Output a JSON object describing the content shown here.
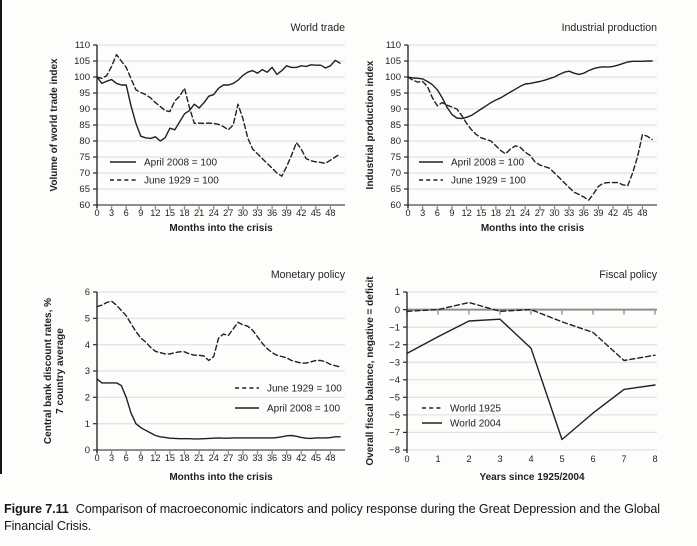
{
  "figure": {
    "caption_label": "Figure 7.11",
    "caption_text": "Comparison of macroeconomic indicators and policy response during the Great Depression and the Global Financial Crisis."
  },
  "colors": {
    "series_line": "#231f20",
    "grid": "#dcdcdc",
    "x_axis": "#8e8e8e",
    "y_axis": "#2b2b2b",
    "text": "#231f20"
  },
  "chart_data": [
    {
      "id": "world-trade",
      "type": "line",
      "title": "World trade",
      "ylabel": [
        "Volume of world trade index"
      ],
      "xlabel": "Months into the crisis",
      "ylim": [
        60,
        110
      ],
      "ytick_step": 5,
      "xlim": [
        0,
        51
      ],
      "xticks": [
        0,
        3,
        6,
        9,
        12,
        15,
        18,
        21,
        24,
        27,
        30,
        33,
        36,
        39,
        42,
        45,
        48
      ],
      "x_start": 0,
      "x_step": 1,
      "grid": true,
      "bottom_axis": true,
      "zero_line": false,
      "legend_order": [
        0,
        1
      ],
      "series": [
        {
          "name": "April 2008 = 100",
          "dash": "solid",
          "values": [
            100,
            98,
            98.7,
            99.2,
            98,
            97.5,
            97.5,
            91,
            85.5,
            81.5,
            81,
            80.8,
            81.3,
            80,
            81,
            84,
            83.5,
            86,
            88.5,
            89.5,
            91.5,
            90.3,
            92,
            94,
            94.5,
            96.5,
            97.5,
            97.5,
            98,
            99,
            100.5,
            101.5,
            102,
            101.2,
            102.3,
            101.5,
            103,
            100.8,
            102,
            103.5,
            103,
            103,
            103.5,
            103.3,
            103.8,
            103.7,
            103.7,
            102.8,
            103.5,
            105.2,
            104.3
          ]
        },
        {
          "name": "June 1929 = 100",
          "dash": "dashed",
          "values": [
            100,
            99.6,
            100.4,
            103.3,
            107,
            105,
            103,
            99.5,
            96,
            95.2,
            94.5,
            93.5,
            92,
            90.8,
            89.5,
            89.2,
            92.5,
            94,
            96.5,
            90.5,
            85.5,
            85.6,
            85.5,
            85.6,
            85.5,
            85.2,
            84.5,
            83.5,
            85,
            91.5,
            87,
            81,
            77.5,
            76,
            74.5,
            73,
            71.5,
            70,
            69,
            72,
            75.5,
            79.5,
            77.5,
            74.5,
            73.8,
            73.5,
            73.3,
            73,
            74,
            75,
            76
          ]
        }
      ]
    },
    {
      "id": "industrial-production",
      "type": "line",
      "title": "Industrial production",
      "ylabel": [
        "Industrial production index"
      ],
      "xlabel": "Months into the crisis",
      "ylim": [
        60,
        110
      ],
      "ytick_step": 5,
      "xlim": [
        0,
        51
      ],
      "xticks": [
        0,
        3,
        6,
        9,
        12,
        15,
        18,
        21,
        24,
        27,
        30,
        33,
        36,
        39,
        42,
        45,
        48
      ],
      "x_start": 0,
      "x_step": 1,
      "grid": true,
      "bottom_axis": true,
      "zero_line": false,
      "legend_order": [
        0,
        1
      ],
      "series": [
        {
          "name": "April 2008 = 100",
          "dash": "solid",
          "values": [
            100,
            99.7,
            99.6,
            99.4,
            98.6,
            97.6,
            96,
            93.5,
            90.5,
            88.3,
            87.2,
            87,
            87.4,
            88,
            89,
            90,
            91,
            92,
            92.8,
            93.5,
            94.4,
            95.3,
            96.2,
            97.1,
            97.8,
            98,
            98.3,
            98.6,
            99,
            99.5,
            100,
            100.8,
            101.5,
            101.8,
            101.2,
            100.8,
            101.2,
            102,
            102.6,
            103,
            103.2,
            103.1,
            103.3,
            103.7,
            104.2,
            104.7,
            104.9,
            104.9,
            104.9,
            105,
            105
          ]
        },
        {
          "name": "June 1929 = 100",
          "dash": "dashed",
          "values": [
            100,
            99,
            98.4,
            98.6,
            97,
            93.5,
            91,
            92,
            91.2,
            90.6,
            90,
            88,
            85.5,
            83.5,
            82,
            81,
            80.5,
            80,
            78.5,
            77,
            76,
            77.5,
            78.5,
            78,
            76.5,
            75.5,
            73.5,
            72.5,
            72,
            71.5,
            70,
            68.5,
            67,
            65.5,
            64,
            63.3,
            62.5,
            61.5,
            63.5,
            65.8,
            66.8,
            67,
            67,
            67,
            66.3,
            66,
            70,
            75,
            82,
            81.5,
            80.5
          ]
        }
      ]
    },
    {
      "id": "monetary-policy",
      "type": "line",
      "title": "Monetary policy",
      "ylabel": [
        "Central bank discount rates, %",
        "7 country average"
      ],
      "xlabel": "Months into the crisis",
      "ylim": [
        0,
        6
      ],
      "ytick_step": 1,
      "xlim": [
        0,
        51
      ],
      "xticks": [
        0,
        3,
        6,
        9,
        12,
        15,
        18,
        21,
        24,
        27,
        30,
        33,
        36,
        39,
        42,
        45,
        48
      ],
      "x_start": 0,
      "x_step": 1,
      "grid": true,
      "bottom_axis": true,
      "zero_line": false,
      "legend_order": [
        0,
        1
      ],
      "series": [
        {
          "name": "June 1929 = 100",
          "dash": "dashed",
          "values": [
            5.45,
            5.5,
            5.6,
            5.65,
            5.5,
            5.3,
            5.1,
            4.8,
            4.5,
            4.25,
            4.1,
            3.9,
            3.75,
            3.7,
            3.65,
            3.65,
            3.7,
            3.73,
            3.73,
            3.65,
            3.6,
            3.6,
            3.57,
            3.4,
            3.55,
            4.25,
            4.4,
            4.35,
            4.6,
            4.85,
            4.75,
            4.7,
            4.55,
            4.3,
            4.05,
            3.85,
            3.7,
            3.6,
            3.55,
            3.5,
            3.4,
            3.35,
            3.3,
            3.3,
            3.35,
            3.4,
            3.4,
            3.35,
            3.25,
            3.2,
            3.15
          ]
        },
        {
          "name": "April 2008 = 100",
          "dash": "solid",
          "values": [
            2.7,
            2.55,
            2.55,
            2.55,
            2.55,
            2.45,
            2.0,
            1.4,
            1.0,
            0.85,
            0.75,
            0.65,
            0.55,
            0.5,
            0.48,
            0.45,
            0.44,
            0.43,
            0.43,
            0.43,
            0.42,
            0.42,
            0.43,
            0.44,
            0.45,
            0.46,
            0.45,
            0.45,
            0.46,
            0.46,
            0.46,
            0.46,
            0.46,
            0.46,
            0.46,
            0.46,
            0.46,
            0.47,
            0.5,
            0.54,
            0.55,
            0.52,
            0.48,
            0.45,
            0.44,
            0.46,
            0.46,
            0.46,
            0.47,
            0.5,
            0.5
          ]
        }
      ]
    },
    {
      "id": "fiscal-policy",
      "type": "line",
      "title": "Fiscal policy",
      "ylabel": [
        "Overall fiscal balance, negative = deficit"
      ],
      "xlabel": "Years since 1925/2004",
      "ylim": [
        -8,
        1
      ],
      "ytick_step": 1,
      "xlim": [
        0,
        8
      ],
      "xticks": [
        0,
        1,
        2,
        3,
        4,
        5,
        6,
        7,
        8
      ],
      "x_start": 0,
      "x_step": 1,
      "grid": true,
      "bottom_axis": false,
      "zero_line": true,
      "legend_order": [
        0,
        1
      ],
      "series": [
        {
          "name": "World 1925",
          "dash": "dashed",
          "values": [
            -0.1,
            0,
            0.4,
            -0.1,
            0,
            -0.7,
            -1.3,
            -2.9,
            -2.6
          ]
        },
        {
          "name": "World 2004",
          "dash": "solid",
          "values": [
            -2.5,
            -1.55,
            -0.65,
            -0.55,
            -2.2,
            -7.4,
            -5.9,
            -4.55,
            -4.3
          ]
        }
      ]
    }
  ]
}
